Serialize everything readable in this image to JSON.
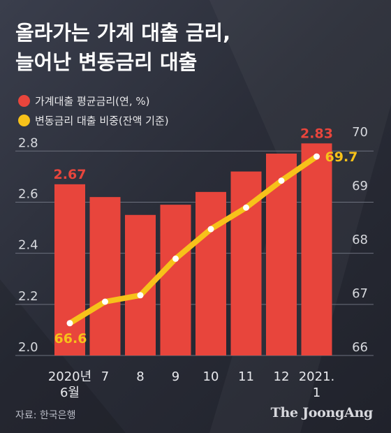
{
  "title": {
    "line1": "올라가는 가계 대출 금리,",
    "line2": "늘어난 변동금리 대출"
  },
  "legend": [
    {
      "label": "가계대출 평균금리(연, %)",
      "color": "#e8453c"
    },
    {
      "label": "변동금리 대출 비중(잔액 기준)",
      "color": "#f7c21a"
    }
  ],
  "source": "자료: 한국은행",
  "brand": "The JoongAng",
  "colors": {
    "bar": "#e8453c",
    "line": "#f7c21a",
    "label_rate": "#e8453c",
    "label_share": "#f7c21a"
  },
  "chart_data": {
    "type": "bar+line",
    "categories": [
      [
        "2020년",
        "6월"
      ],
      [
        "7"
      ],
      [
        "8"
      ],
      [
        "9"
      ],
      [
        "10"
      ],
      [
        "11"
      ],
      [
        "12"
      ],
      [
        "2021.",
        "1"
      ]
    ],
    "series": [
      {
        "name": "가계대출 평균금리(연, %)",
        "type": "bar",
        "axis": "left",
        "values": [
          2.67,
          2.62,
          2.55,
          2.59,
          2.64,
          2.72,
          2.79,
          2.83
        ]
      },
      {
        "name": "변동금리 대출 비중(잔액 기준)",
        "type": "line",
        "axis": "right",
        "values": [
          66.6,
          67.0,
          67.12,
          67.8,
          68.35,
          68.75,
          69.25,
          69.7
        ]
      }
    ],
    "left_axis": {
      "ticks": [
        "2.0",
        "2.2",
        "2.4",
        "2.6",
        "2.8"
      ],
      "ylim": [
        2.0,
        2.85
      ]
    },
    "right_axis": {
      "ticks": [
        "66",
        "67",
        "68",
        "69",
        "70"
      ],
      "ylim": [
        66,
        70
      ]
    },
    "data_labels": [
      {
        "series": 0,
        "index": 0,
        "text": "2.67"
      },
      {
        "series": 0,
        "index": 7,
        "text": "2.83"
      },
      {
        "series": 1,
        "index": 0,
        "text": "66.6"
      },
      {
        "series": 1,
        "index": 7,
        "text": "69.7"
      }
    ]
  }
}
